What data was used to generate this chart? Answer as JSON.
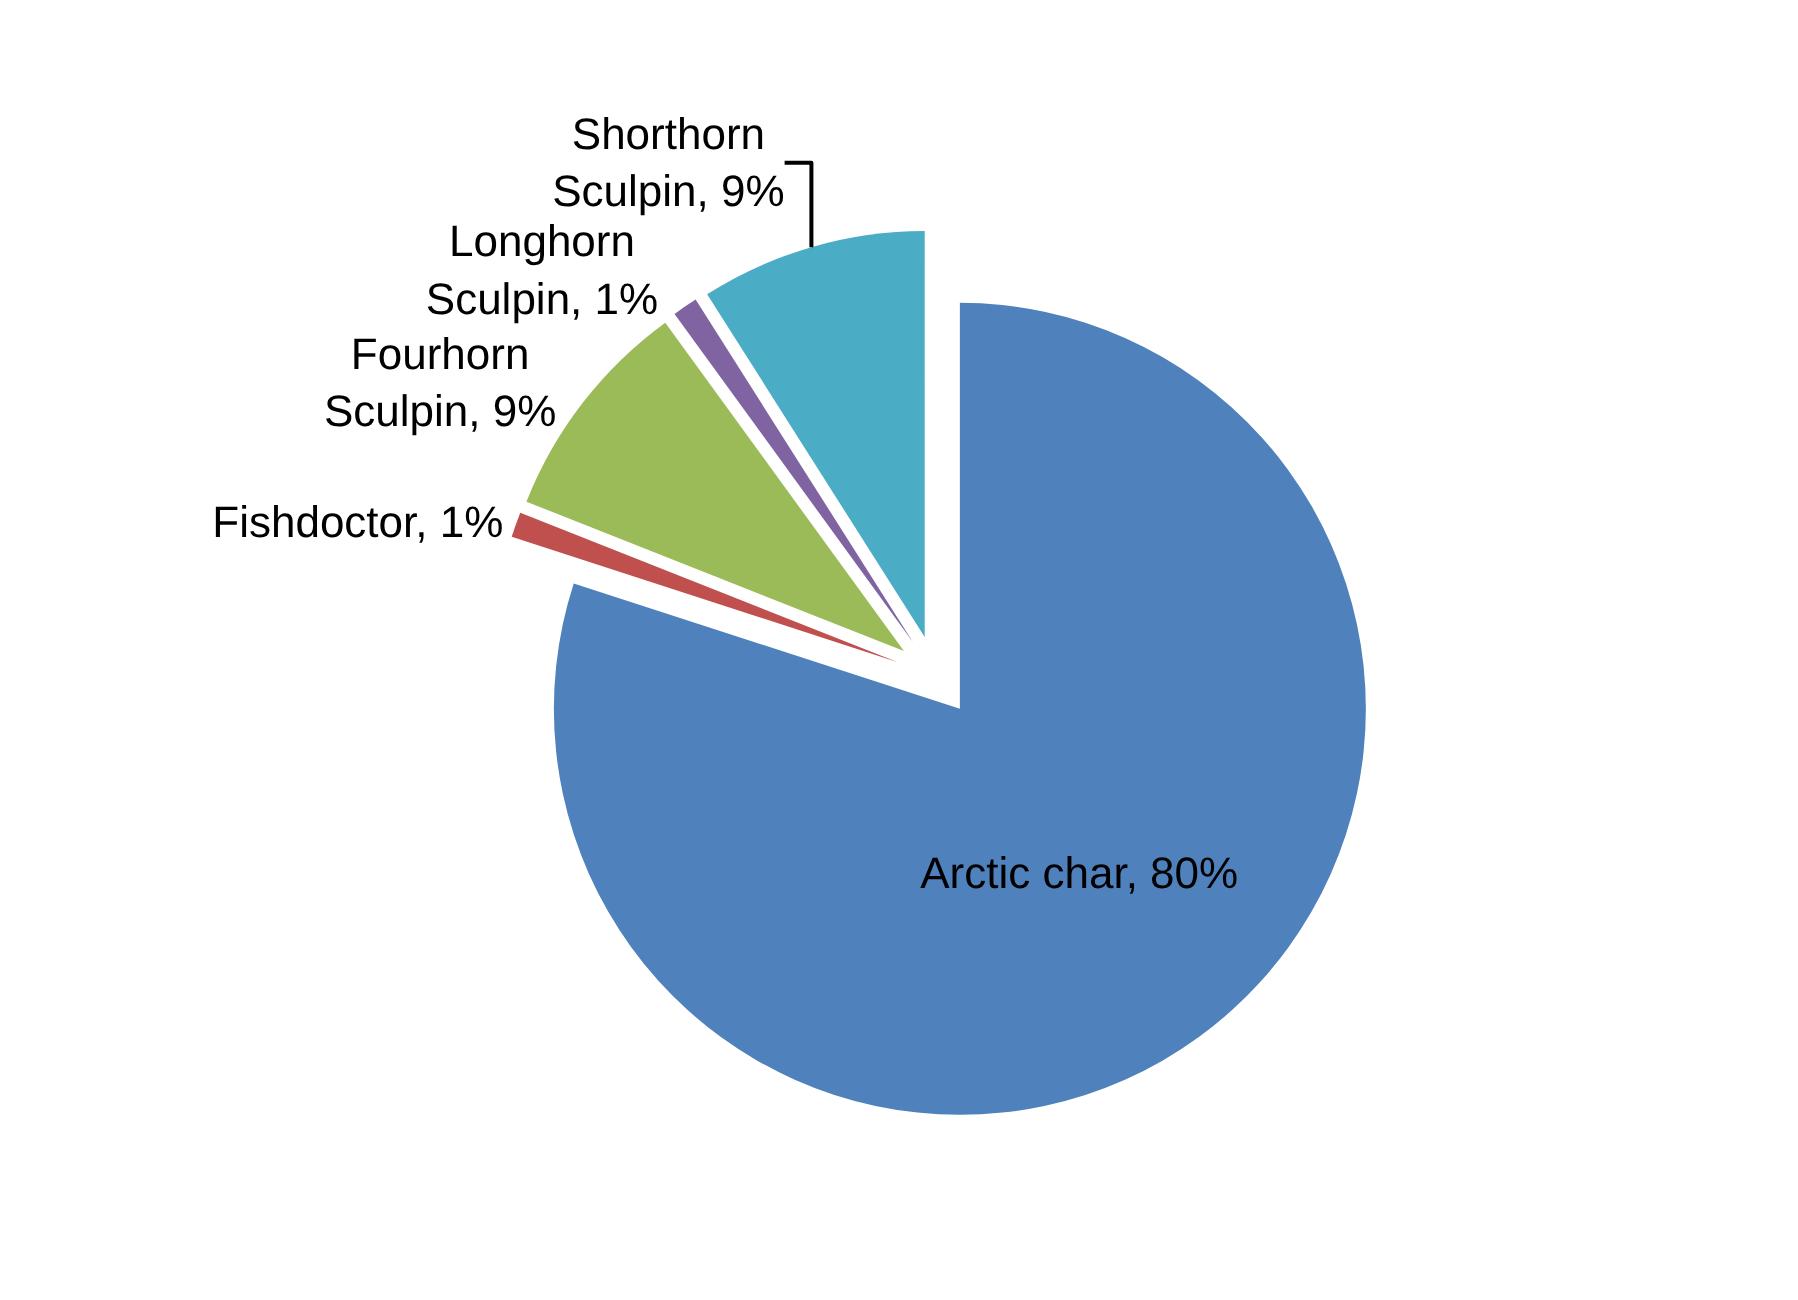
{
  "chart_data": {
    "type": "pie",
    "categories": [
      "Arctic char",
      "Fishdoctor",
      "Fourhorn Sculpin",
      "Longhorn Sculpin",
      "Shorthorn Sculpin"
    ],
    "values": [
      80,
      1,
      9,
      1,
      9
    ],
    "colors": [
      "#4f81bd",
      "#c0504d",
      "#9bbb59",
      "#8064a2",
      "#4bacc6"
    ],
    "value_labels": [
      "80%",
      "1%",
      "9%",
      "1%",
      "9%"
    ],
    "legend": false
  }
}
